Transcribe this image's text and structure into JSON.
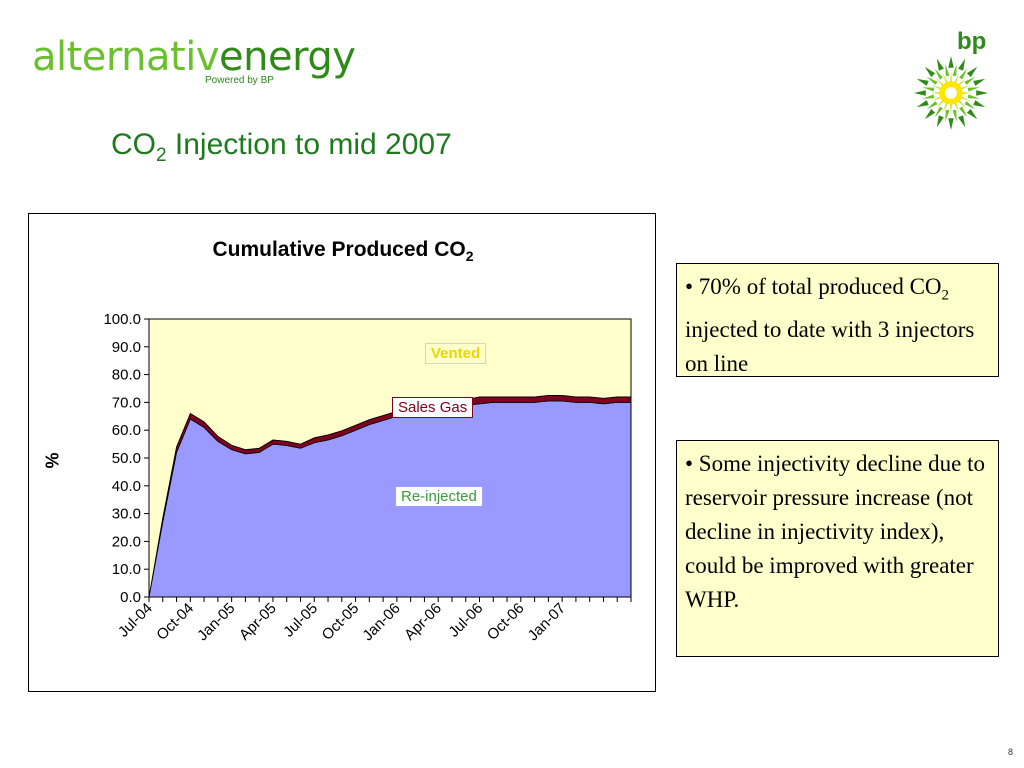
{
  "header": {
    "logo_part1": "alternativ",
    "logo_part2": "energy",
    "logo_sub": "Powered by BP",
    "bp_text": "bp"
  },
  "slide": {
    "title_pre": "CO",
    "title_sub": "2",
    "title_post": " Injection to mid 2007",
    "page_number": "8"
  },
  "colors": {
    "title_green": "#1e7a1e",
    "vented": "#ffffcc",
    "sales_gas": "#800020",
    "reinjected": "#9999ff"
  },
  "text_boxes": [
    {
      "bullet": "• 70% of total produced CO",
      "sub": "2",
      "rest": " injected to date with 3 injectors on line"
    },
    {
      "bullet": "• Some injectivity decline due to reservoir pressure increase (not decline in injectivity index), could be improved with greater WHP."
    }
  ],
  "chart_data": {
    "type": "area",
    "stacked": true,
    "title_pre": "Cumulative Produced CO",
    "title_sub": "2",
    "ylabel": "%",
    "ylim": [
      0,
      100
    ],
    "yticks": [
      "0.0",
      "10.0",
      "20.0",
      "30.0",
      "40.0",
      "50.0",
      "60.0",
      "70.0",
      "80.0",
      "90.0",
      "100.0"
    ],
    "xticks": [
      "Jul-04",
      "Oct-04",
      "Jan-05",
      "Apr-05",
      "Jul-05",
      "Oct-05",
      "Jan-06",
      "Apr-06",
      "Jul-06",
      "Oct-06",
      "Jan-07"
    ],
    "x_months": [
      "Jul-04",
      "Aug-04",
      "Sep-04",
      "Oct-04",
      "Nov-04",
      "Dec-04",
      "Jan-05",
      "Feb-05",
      "Mar-05",
      "Apr-05",
      "May-05",
      "Jun-05",
      "Jul-05",
      "Aug-05",
      "Sep-05",
      "Oct-05",
      "Nov-05",
      "Dec-05",
      "Jan-06",
      "Feb-06",
      "Mar-06",
      "Apr-06",
      "May-06",
      "Jun-06",
      "Jul-06",
      "Aug-06",
      "Sep-06",
      "Oct-06",
      "Nov-06",
      "Dec-06",
      "Jan-07",
      "Feb-07",
      "Mar-07",
      "Apr-07",
      "May-07",
      "Jun-07"
    ],
    "grid": false,
    "series": [
      {
        "name": "Re-injected",
        "color": "#9999ff",
        "values": [
          0,
          27,
          52,
          64,
          61,
          56,
          53,
          51.5,
          52,
          55,
          54.5,
          53.5,
          55.5,
          56.5,
          58,
          60,
          62,
          63.5,
          65,
          66,
          66.5,
          67,
          68,
          69,
          69.5,
          70,
          70,
          70,
          70,
          70.5,
          70.5,
          70,
          70,
          69.5,
          70,
          70
        ]
      },
      {
        "name": "Sales Gas",
        "color": "#800020",
        "values": [
          0,
          1.5,
          2,
          2,
          2,
          1.8,
          1.6,
          1.5,
          1.5,
          1.5,
          1.5,
          1.5,
          1.8,
          1.8,
          1.8,
          1.8,
          1.8,
          1.8,
          1.8,
          1.8,
          1.8,
          1.8,
          1.8,
          2,
          2.5,
          2,
          2,
          2,
          2,
          2,
          2,
          2,
          2,
          2,
          2,
          2
        ]
      },
      {
        "name": "Vented",
        "color": "#ffffcc",
        "values": [
          100,
          71.5,
          46,
          34,
          37,
          42.2,
          45.4,
          47,
          46.5,
          43.5,
          44,
          45,
          42.7,
          41.7,
          40.2,
          38.2,
          36.2,
          34.7,
          33.2,
          32.2,
          31.7,
          31.2,
          30.2,
          29,
          28,
          28,
          28,
          28,
          28,
          27.5,
          27.5,
          28,
          28,
          28.5,
          28,
          28
        ]
      }
    ],
    "annotations": [
      "Vented",
      "Sales Gas",
      "Re-injected"
    ]
  }
}
